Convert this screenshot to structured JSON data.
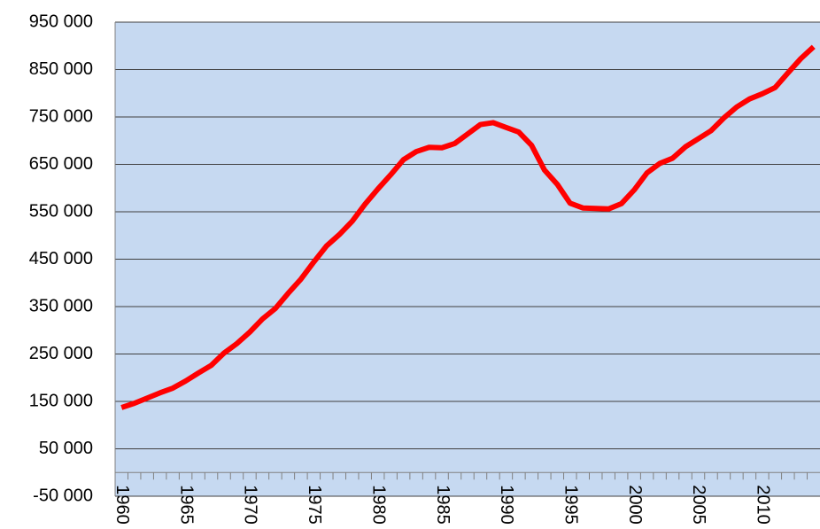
{
  "chart_data": {
    "type": "line",
    "categories": [
      "1960",
      null,
      null,
      null,
      null,
      "1965",
      null,
      null,
      null,
      null,
      "1970",
      null,
      null,
      null,
      null,
      "1975",
      null,
      null,
      null,
      null,
      "1980",
      null,
      null,
      null,
      null,
      "1985",
      null,
      null,
      null,
      null,
      "1990",
      null,
      null,
      null,
      null,
      "1995",
      null,
      null,
      null,
      null,
      "2000",
      null,
      null,
      null,
      null,
      "2005",
      null,
      null,
      null,
      null,
      "2010",
      null,
      null,
      null,
      null
    ],
    "series": [
      {
        "color": "#ff0000",
        "values": [
          137000,
          146000,
          157000,
          168000,
          178000,
          193000,
          210000,
          226000,
          252000,
          272000,
          296000,
          324000,
          346000,
          378000,
          408000,
          444000,
          478000,
          502000,
          530000,
          566000,
          598000,
          628000,
          660000,
          677000,
          686000,
          685000,
          694000,
          714000,
          734000,
          738000,
          728000,
          718000,
          690000,
          638000,
          608000,
          568000,
          558000,
          557000,
          556000,
          567000,
          596000,
          632000,
          652000,
          663000,
          687000,
          704000,
          721000,
          748000,
          771000,
          788000,
          799000,
          812000,
          843000,
          873000,
          898000
        ]
      }
    ],
    "ylim": [
      -50000,
      950000
    ],
    "yticks": [
      {
        "value": -50000,
        "label": "-50 000"
      },
      {
        "value": 50000,
        "label": "50 000"
      },
      {
        "value": 150000,
        "label": "150 000"
      },
      {
        "value": 250000,
        "label": "250 000"
      },
      {
        "value": 350000,
        "label": "350 000"
      },
      {
        "value": 450000,
        "label": "450 000"
      },
      {
        "value": 550000,
        "label": "550 000"
      },
      {
        "value": 650000,
        "label": "650 000"
      },
      {
        "value": 750000,
        "label": "750 000"
      },
      {
        "value": 850000,
        "label": "850 000"
      },
      {
        "value": 950000,
        "label": "950 000"
      }
    ],
    "grid": true
  }
}
